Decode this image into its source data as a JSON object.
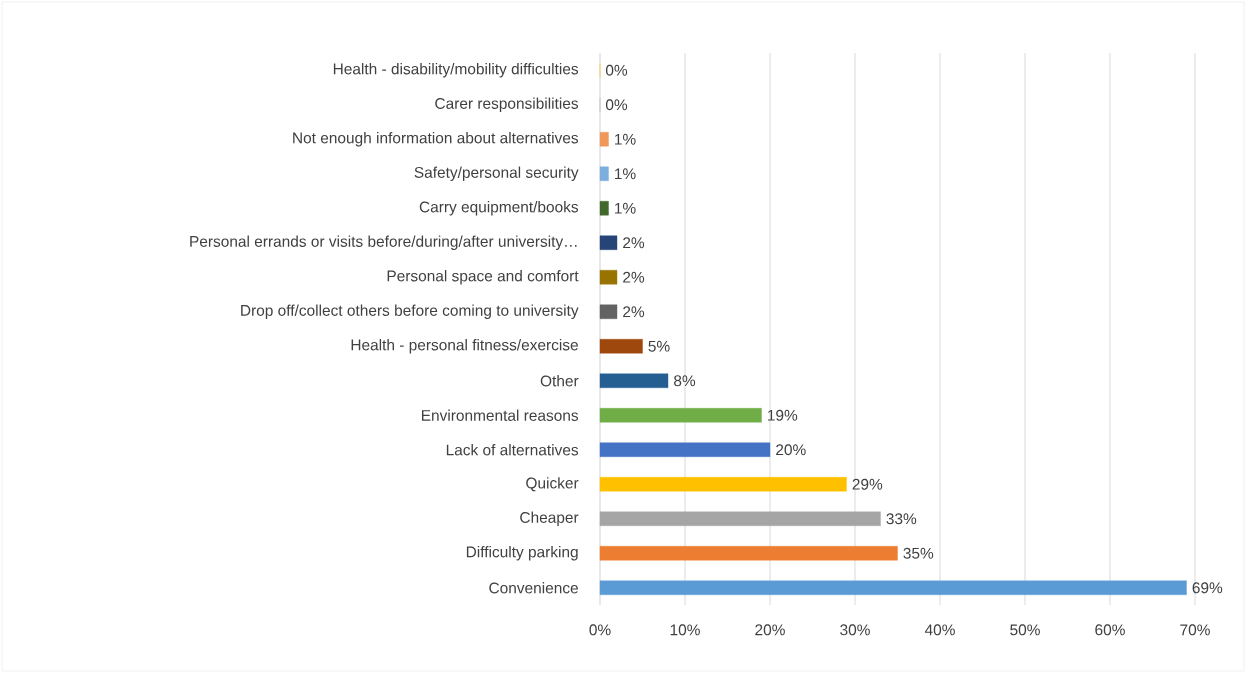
{
  "chart_data": {
    "type": "bar",
    "orientation": "horizontal",
    "categories": [
      "Health - disability/mobility difficulties",
      "Carer responsibilities",
      "Not enough information about alternatives",
      "Safety/personal security",
      "Carry equipment/books",
      "Personal errands or visits before/during/after university…",
      "Personal space and comfort",
      "Drop off/collect others before coming to university",
      "Health - personal fitness/exercise",
      "Other",
      "Environmental reasons",
      "Lack of alternatives",
      "Quicker",
      "Cheaper",
      "Difficulty parking",
      "Convenience"
    ],
    "values": [
      0,
      0,
      1,
      1,
      1,
      2,
      2,
      2,
      5,
      8,
      19,
      20,
      29,
      33,
      35,
      69
    ],
    "value_labels": [
      "0%",
      "0%",
      "1%",
      "1%",
      "1%",
      "2%",
      "2%",
      "2%",
      "5%",
      "8%",
      "19%",
      "20%",
      "29%",
      "33%",
      "35%",
      "69%"
    ],
    "colors": [
      "#ffcd33",
      "#b7b7b7",
      "#f1975a",
      "#7cafdd",
      "#43682b",
      "#264478",
      "#997300",
      "#636363",
      "#9e480e",
      "#255e91",
      "#70ad47",
      "#4472c4",
      "#ffc000",
      "#a5a5a5",
      "#ed7d31",
      "#5b9bd5"
    ],
    "xlim": [
      0,
      70
    ],
    "xticks": [
      {
        "value": 0,
        "label": "0%"
      },
      {
        "value": 10,
        "label": "10%"
      },
      {
        "value": 20,
        "label": "20%"
      },
      {
        "value": 30,
        "label": "30%"
      },
      {
        "value": 40,
        "label": "40%"
      },
      {
        "value": 50,
        "label": "50%"
      },
      {
        "value": 60,
        "label": "60%"
      },
      {
        "value": 70,
        "label": "70%"
      }
    ],
    "grid": "x"
  }
}
